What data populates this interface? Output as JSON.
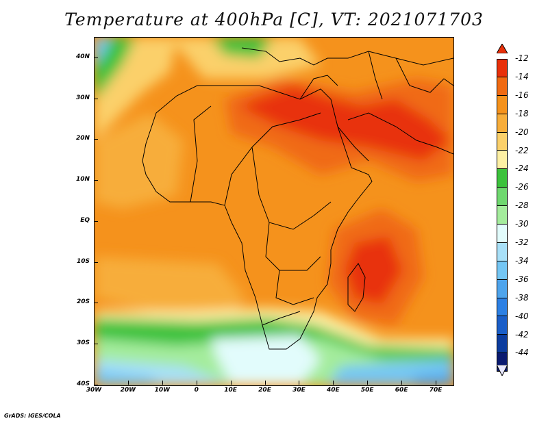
{
  "title": "Temperature at 400hPa [C], VT: 2021071703",
  "footer": "GrADS: IGES/COLA",
  "map": {
    "lat_labels": [
      "40N",
      "30N",
      "20N",
      "10N",
      "EQ",
      "10S",
      "20S",
      "30S",
      "40S"
    ],
    "lon_labels": [
      "30W",
      "20W",
      "10W",
      "0",
      "10E",
      "20E",
      "30E",
      "40E",
      "50E",
      "60E",
      "70E"
    ],
    "lat_range": [
      -40,
      45
    ],
    "lon_range": [
      -30,
      75
    ]
  },
  "colorbar": {
    "labels": [
      "-12",
      "-14",
      "-16",
      "-18",
      "-20",
      "-22",
      "-24",
      "-26",
      "-28",
      "-30",
      "-32",
      "-34",
      "-36",
      "-38",
      "-40",
      "-42",
      "-44"
    ],
    "colors": [
      "#e8300a",
      "#f06a12",
      "#f5921c",
      "#f7ad3a",
      "#fbd06a",
      "#fdf0a4",
      "#3cc23c",
      "#6fd86f",
      "#a4ec9c",
      "#e2fcfc",
      "#a8e0f8",
      "#74c6f4",
      "#4ea4ec",
      "#2c80e4",
      "#1a5ec8",
      "#0c3c9e",
      "#0a1a70"
    ]
  }
}
